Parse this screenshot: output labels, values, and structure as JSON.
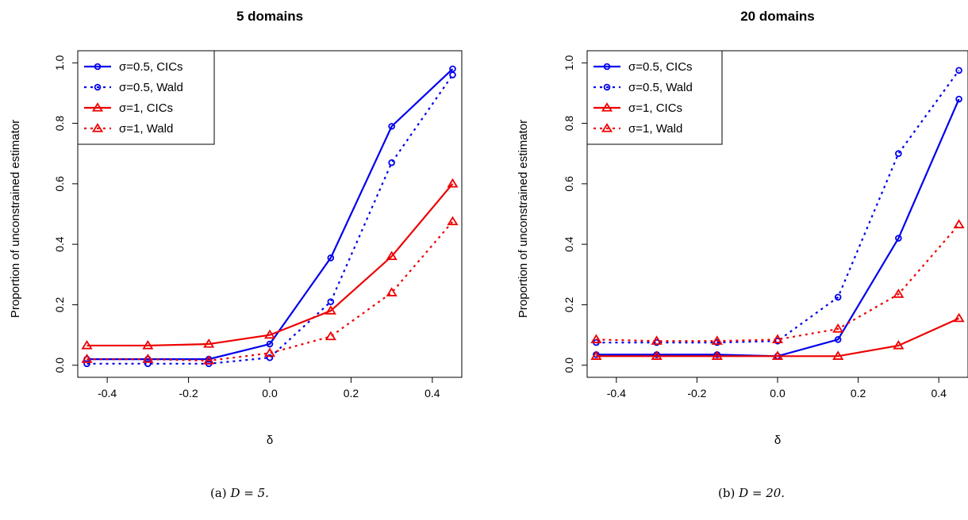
{
  "chart_data": [
    {
      "type": "line",
      "title": "5 domains",
      "xlabel": "δ",
      "ylabel": "Proportion of unconstrained estimator",
      "x": [
        -0.45,
        -0.3,
        -0.15,
        0.0,
        0.15,
        0.3,
        0.45
      ],
      "xticks": [
        "-0.4",
        "-0.2",
        "0.0",
        "0.2",
        "0.4"
      ],
      "yticks": [
        "0.0",
        "0.2",
        "0.4",
        "0.6",
        "0.8",
        "1.0"
      ],
      "xlim": [
        -0.4725,
        0.4725
      ],
      "ylim": [
        -0.04,
        1.04
      ],
      "legend_position": "top-left",
      "series": [
        {
          "name": "σ=0.5, CICs",
          "color": "#0000ee",
          "style": "solid",
          "marker": "circle",
          "values": [
            0.02,
            0.02,
            0.02,
            0.07,
            0.355,
            0.79,
            0.98
          ]
        },
        {
          "name": "σ=0.5, Wald",
          "color": "#0000ee",
          "style": "dotted",
          "marker": "circle",
          "values": [
            0.005,
            0.005,
            0.005,
            0.025,
            0.21,
            0.67,
            0.96
          ]
        },
        {
          "name": "σ=1, CICs",
          "color": "#ee0000",
          "style": "solid",
          "marker": "triangle",
          "values": [
            0.065,
            0.065,
            0.07,
            0.1,
            0.18,
            0.36,
            0.6
          ]
        },
        {
          "name": "σ=1, Wald",
          "color": "#ee0000",
          "style": "dotted",
          "marker": "triangle",
          "values": [
            0.02,
            0.02,
            0.015,
            0.04,
            0.095,
            0.24,
            0.475
          ]
        }
      ]
    },
    {
      "type": "line",
      "title": "20 domains",
      "xlabel": "δ",
      "ylabel": "Proportion of unconstrained estimator",
      "x": [
        -0.45,
        -0.3,
        -0.15,
        0.0,
        0.15,
        0.3,
        0.45
      ],
      "xticks": [
        "-0.4",
        "-0.2",
        "0.0",
        "0.2",
        "0.4"
      ],
      "yticks": [
        "0.0",
        "0.2",
        "0.4",
        "0.6",
        "0.8",
        "1.0"
      ],
      "xlim": [
        -0.4725,
        0.4725
      ],
      "ylim": [
        -0.04,
        1.04
      ],
      "legend_position": "top-left",
      "series": [
        {
          "name": "σ=0.5, CICs",
          "color": "#0000ee",
          "style": "solid",
          "marker": "circle",
          "values": [
            0.035,
            0.035,
            0.035,
            0.03,
            0.085,
            0.42,
            0.88
          ]
        },
        {
          "name": "σ=0.5, Wald",
          "color": "#0000ee",
          "style": "dotted",
          "marker": "circle",
          "values": [
            0.075,
            0.075,
            0.075,
            0.08,
            0.225,
            0.7,
            0.975
          ]
        },
        {
          "name": "σ=1, CICs",
          "color": "#ee0000",
          "style": "solid",
          "marker": "triangle",
          "values": [
            0.03,
            0.03,
            0.03,
            0.03,
            0.03,
            0.065,
            0.155
          ]
        },
        {
          "name": "σ=1, Wald",
          "color": "#ee0000",
          "style": "dotted",
          "marker": "triangle",
          "values": [
            0.085,
            0.08,
            0.08,
            0.085,
            0.12,
            0.235,
            0.465
          ]
        }
      ]
    }
  ],
  "captions": [
    {
      "prefix": "(a)",
      "math": "D = 5."
    },
    {
      "prefix": "(b)",
      "math": "D = 20."
    }
  ]
}
